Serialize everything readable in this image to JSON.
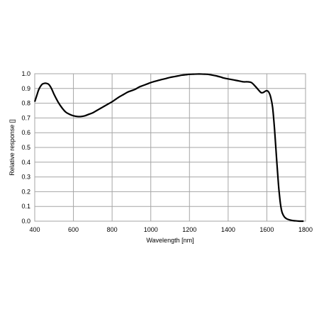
{
  "chart_data": {
    "type": "line",
    "title": "",
    "xlabel": "Wavelength [nm]",
    "ylabel": "Relative response []",
    "xlim": [
      400,
      1800
    ],
    "ylim": [
      0,
      1
    ],
    "x_ticks": [
      400,
      600,
      800,
      1000,
      1200,
      1400,
      1600,
      1800
    ],
    "y_ticks": [
      0.0,
      0.1,
      0.2,
      0.3,
      0.4,
      0.5,
      0.6,
      0.7,
      0.8,
      0.9,
      1.0
    ],
    "x_tick_labels": [
      "400",
      "600",
      "800",
      "1000",
      "1200",
      "1400",
      "1600",
      "1800"
    ],
    "y_tick_labels": [
      "0.0",
      "0.1",
      "0.2",
      "0.3",
      "0.4",
      "0.5",
      "0.6",
      "0.7",
      "0.8",
      "0.9",
      "1.0"
    ],
    "grid": true,
    "legend": "none",
    "line_color": "#000000",
    "grid_color": "#a6a6a6",
    "series": [
      {
        "x": [
          400,
          410,
          420,
          430,
          440,
          450,
          460,
          470,
          480,
          490,
          500,
          520,
          540,
          560,
          580,
          600,
          620,
          640,
          660,
          680,
          700,
          720,
          740,
          760,
          780,
          800,
          820,
          840,
          860,
          880,
          900,
          920,
          940,
          960,
          980,
          1000,
          1020,
          1040,
          1060,
          1080,
          1100,
          1120,
          1140,
          1160,
          1180,
          1200,
          1220,
          1240,
          1260,
          1280,
          1300,
          1320,
          1340,
          1360,
          1380,
          1400,
          1420,
          1440,
          1460,
          1480,
          1500,
          1520,
          1540,
          1560,
          1570,
          1580,
          1590,
          1600,
          1610,
          1620,
          1630,
          1640,
          1650,
          1660,
          1665,
          1670,
          1675,
          1680,
          1690,
          1700,
          1710,
          1720,
          1730,
          1740,
          1750,
          1760,
          1770,
          1780,
          1790
        ],
        "y": [
          0.81,
          0.85,
          0.89,
          0.915,
          0.93,
          0.935,
          0.935,
          0.93,
          0.915,
          0.89,
          0.86,
          0.81,
          0.77,
          0.74,
          0.725,
          0.715,
          0.71,
          0.71,
          0.715,
          0.725,
          0.735,
          0.75,
          0.765,
          0.78,
          0.795,
          0.81,
          0.828,
          0.845,
          0.86,
          0.875,
          0.885,
          0.895,
          0.91,
          0.92,
          0.93,
          0.94,
          0.948,
          0.955,
          0.962,
          0.968,
          0.975,
          0.98,
          0.985,
          0.99,
          0.993,
          0.996,
          0.997,
          0.998,
          0.998,
          0.997,
          0.995,
          0.99,
          0.985,
          0.978,
          0.97,
          0.965,
          0.96,
          0.955,
          0.95,
          0.945,
          0.945,
          0.94,
          0.915,
          0.885,
          0.872,
          0.872,
          0.88,
          0.885,
          0.875,
          0.84,
          0.77,
          0.62,
          0.43,
          0.25,
          0.18,
          0.12,
          0.08,
          0.055,
          0.03,
          0.018,
          0.012,
          0.008,
          0.005,
          0.003,
          0.002,
          0.001,
          0.0,
          0.0,
          0.0
        ]
      }
    ]
  }
}
